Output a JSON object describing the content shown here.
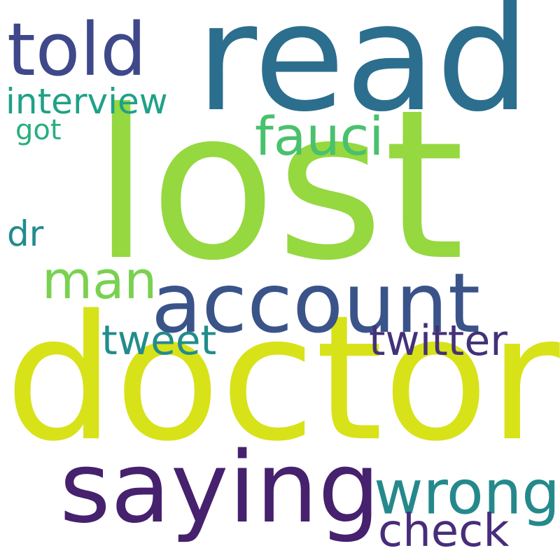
{
  "words": [
    {
      "id": "lost",
      "text": "lost",
      "color": "#95d840"
    },
    {
      "id": "doctor",
      "text": "doctor",
      "color": "#d8e219"
    },
    {
      "id": "read",
      "text": "read",
      "color": "#2c6e8e"
    },
    {
      "id": "account",
      "text": "account",
      "color": "#3a5489"
    },
    {
      "id": "saying",
      "text": "saying",
      "color": "#46216e"
    },
    {
      "id": "told",
      "text": "told",
      "color": "#3f4889"
    },
    {
      "id": "wrong",
      "text": "wrong",
      "color": "#25898c"
    },
    {
      "id": "fauci",
      "text": "fauci",
      "color": "#49c16d"
    },
    {
      "id": "man",
      "text": "man",
      "color": "#7ad151"
    },
    {
      "id": "twitter",
      "text": "twitter",
      "color": "#433179"
    },
    {
      "id": "check",
      "text": "check",
      "color": "#472d7b"
    },
    {
      "id": "tweet",
      "text": "tweet",
      "color": "#228c8c"
    },
    {
      "id": "interview",
      "text": "interview",
      "color": "#1fa187"
    },
    {
      "id": "dr",
      "text": "dr",
      "color": "#238a8d"
    },
    {
      "id": "got",
      "text": "got",
      "color": "#29af7f"
    }
  ]
}
